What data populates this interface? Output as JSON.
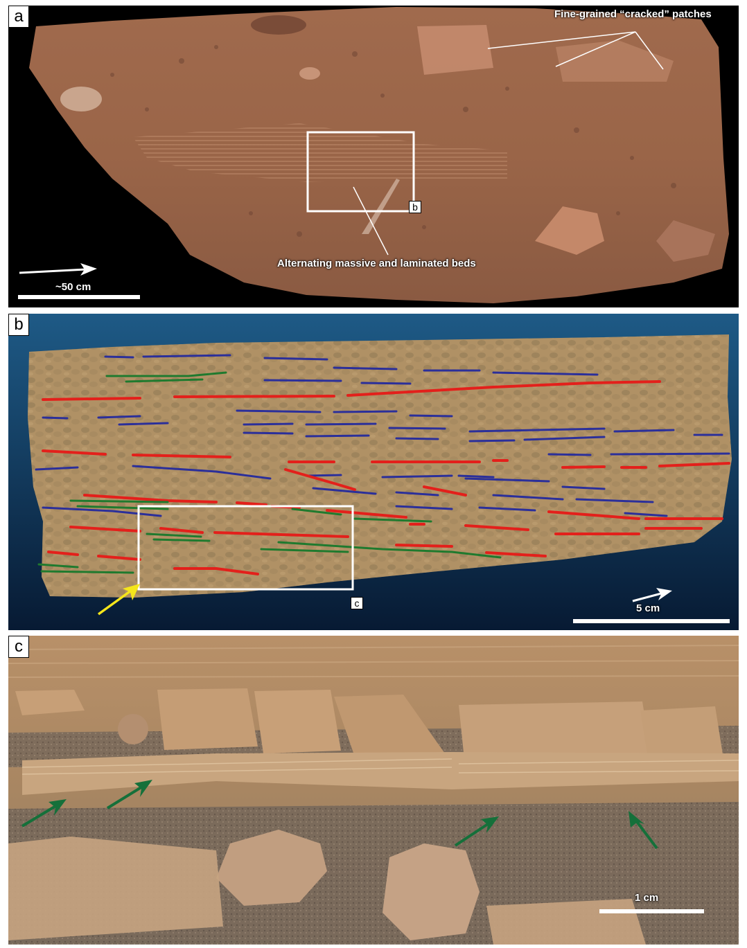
{
  "panels": {
    "a": {
      "letter": "a",
      "annotations": {
        "top_right": "Fine-grained “cracked” patches",
        "bottom": "Alternating massive and laminated beds"
      },
      "inset_tag": "b",
      "scale_label": "~50 cm"
    },
    "b": {
      "letter": "b",
      "inset_tag": "c",
      "scale_label": "5 cm",
      "colors": {
        "blue_trace": "#2b2f9a",
        "red_trace": "#e3201b",
        "green_trace": "#1f7a2e",
        "yellow_arrow": "#f5e61b",
        "background_top": "#1e5a86",
        "background_bottom": "#071a33"
      }
    },
    "c": {
      "letter": "c",
      "scale_label": "1 cm",
      "colors": {
        "green_arrow": "#15703a"
      }
    }
  }
}
